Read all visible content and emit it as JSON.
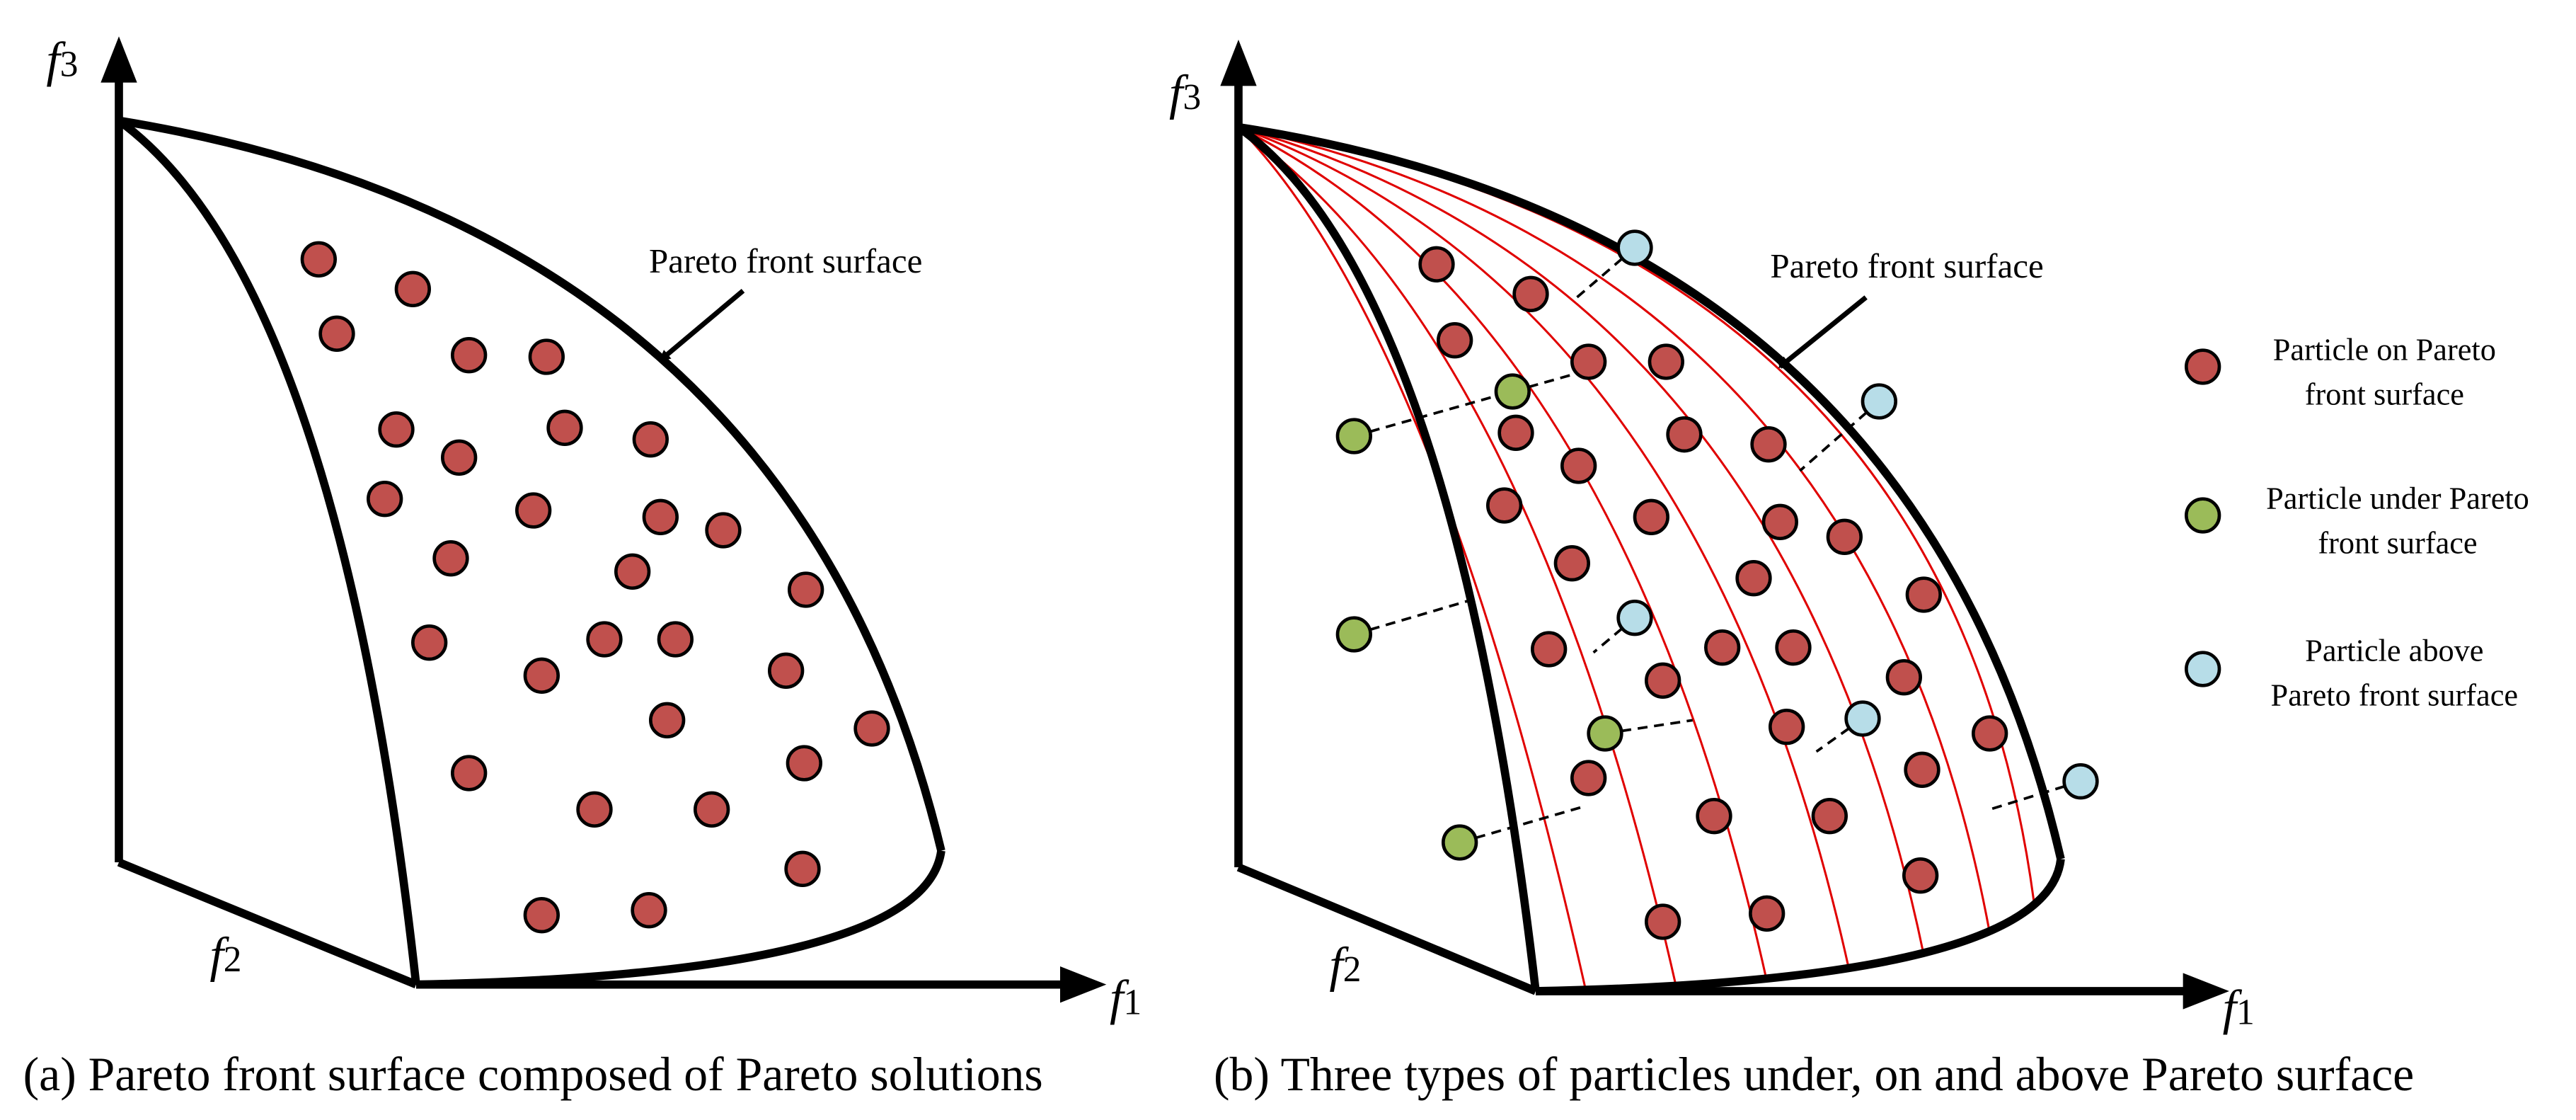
{
  "panel_a": {
    "caption": "(a) Pareto front surface composed of Pareto solutions",
    "annotation": "Pareto front surface",
    "axes": {
      "f3": "f",
      "f3_sub": "3",
      "f2": "f",
      "f2_sub": "2",
      "f1": "f",
      "f1_sub": "1"
    },
    "particle_count": 32
  },
  "panel_b": {
    "caption": "(b) Three types of particles under, on and above Pareto surface",
    "annotation": "Pareto front surface",
    "axes": {
      "f3": "f",
      "f3_sub": "3",
      "f2": "f",
      "f2_sub": "2",
      "f1": "f",
      "f1_sub": "1"
    }
  },
  "legend": [
    {
      "type": "on",
      "color": "#c0504d",
      "line1": "Particle on Pareto",
      "line2": "front surface"
    },
    {
      "type": "under",
      "color": "#9bbb59",
      "line1": "Particle under Pareto",
      "line2": "front surface"
    },
    {
      "type": "above",
      "color": "#b7dde8",
      "line1": "Particle above",
      "line2": "Pareto front surface"
    }
  ],
  "colors": {
    "on": "#c0504d",
    "under": "#9bbb59",
    "above": "#b7dde8",
    "mesh": "#e00000",
    "stroke": "#000000"
  }
}
